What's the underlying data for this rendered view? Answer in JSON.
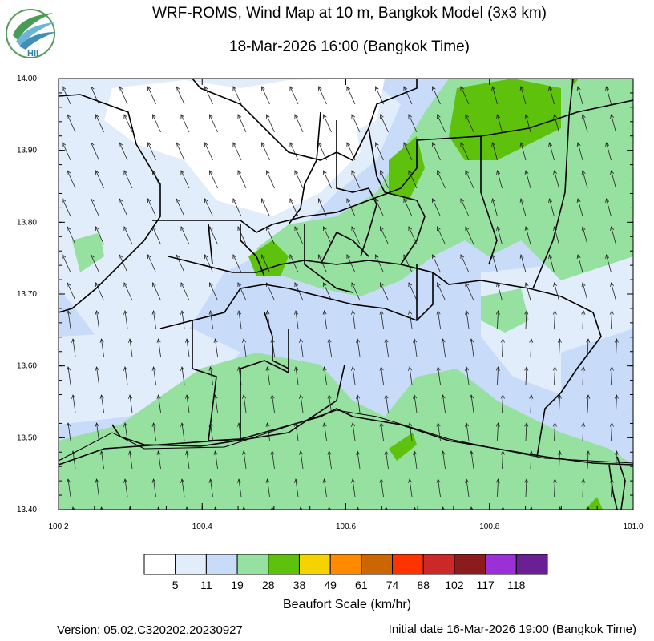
{
  "header": {
    "title": "WRF-ROMS, Wind Map at 10 m, Bangkok Model (3x3 km)",
    "subtitle": "18-Mar-2026 16:00 (Bangkok Time)",
    "logo_text": "HII"
  },
  "map": {
    "x_ticks": [
      "100.2",
      "100.4",
      "100.6",
      "100.8",
      "101.0"
    ],
    "y_ticks": [
      "14.00",
      "13.90",
      "13.80",
      "13.70",
      "13.60",
      "13.50",
      "13.40"
    ],
    "lon_range": [
      100.2,
      101.0
    ],
    "lat_range": [
      13.4,
      14.0
    ],
    "wind_direction": "from south, slightly west of north-pointing arrows",
    "colors": {
      "white": "#ffffff",
      "very_light_blue": "#e1edfb",
      "light_blue": "#c8dcfa",
      "light_green": "#96e0a0",
      "green": "#5ec10b"
    }
  },
  "legend": {
    "title": "Beaufort Scale (km/hr)",
    "labels": [
      "5",
      "11",
      "19",
      "28",
      "38",
      "49",
      "61",
      "74",
      "88",
      "102",
      "117",
      "118"
    ],
    "colors": [
      "#ffffff",
      "#e1edfb",
      "#c8dcfa",
      "#96e0a0",
      "#5ec10b",
      "#f5d200",
      "#ff8a00",
      "#cc6600",
      "#ff3300",
      "#cc2828",
      "#8c1c1c",
      "#9b30d9",
      "#6a1f95"
    ]
  },
  "footer": {
    "version": "Version: 05.02.C320202.20230927",
    "initial_date": "Initial date 16-Mar-2026 19:00 (Bangkok Time)"
  }
}
